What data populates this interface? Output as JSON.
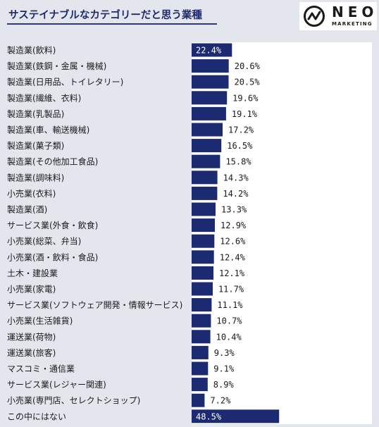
{
  "chart_data": {
    "type": "bar",
    "orientation": "horizontal",
    "title": "サステイナブルなカテゴリーだと思う業種",
    "categories": [
      "製造業(飲料)",
      "製造業(鉄鋼・金属・機械)",
      "製造業(日用品、トイレタリー)",
      "製造業(繊維、衣料)",
      "製造業(乳製品)",
      "製造業(車、輸送機械)",
      "製造業(菓子類)",
      "製造業(その他加工食品)",
      "製造業(調味料)",
      "小売業(衣料)",
      "製造業(酒)",
      "サービス業(外食・飲食)",
      "小売業(総菜、弁当)",
      "小売業(酒・飲料・食品)",
      "土木・建設業",
      "小売業(家電)",
      "サービス業(ソフトウェア開発・情報サービス)",
      "小売業(生活雑貨)",
      "運送業(荷物)",
      "運送業(旅客)",
      "マスコミ・通信業",
      "サービス業(レジャー関連)",
      "小売業(専門店、セレクトショップ)",
      "この中にはない"
    ],
    "values": [
      22.4,
      20.6,
      20.5,
      19.6,
      19.1,
      17.2,
      16.5,
      15.8,
      14.3,
      14.2,
      13.3,
      12.9,
      12.6,
      12.4,
      12.1,
      11.7,
      11.1,
      10.7,
      10.4,
      9.3,
      9.1,
      8.9,
      7.2,
      48.5
    ],
    "value_labels": [
      "22.4%",
      "20.6%",
      "20.5%",
      "19.6%",
      "19.1%",
      "17.2%",
      "16.5%",
      "15.8%",
      "14.3%",
      "14.2%",
      "13.3%",
      "12.9%",
      "12.6%",
      "12.4%",
      "12.1%",
      "11.7%",
      "11.1%",
      "10.7%",
      "10.4%",
      "9.3%",
      "9.1%",
      "8.9%",
      "7.2%",
      "48.5%"
    ],
    "highlighted": [
      0,
      23
    ],
    "unit": "%",
    "xlim": [
      0,
      50
    ],
    "grid": false,
    "legend": "none",
    "colors": {
      "bar": "#1c2a72",
      "plot_background": "#ffffff",
      "page_background": "#e4e6ee",
      "title": "#1f2a6b"
    }
  },
  "logo": {
    "word": "NEO",
    "sub": "MARKETING",
    "icon": "neo-logo-icon"
  }
}
